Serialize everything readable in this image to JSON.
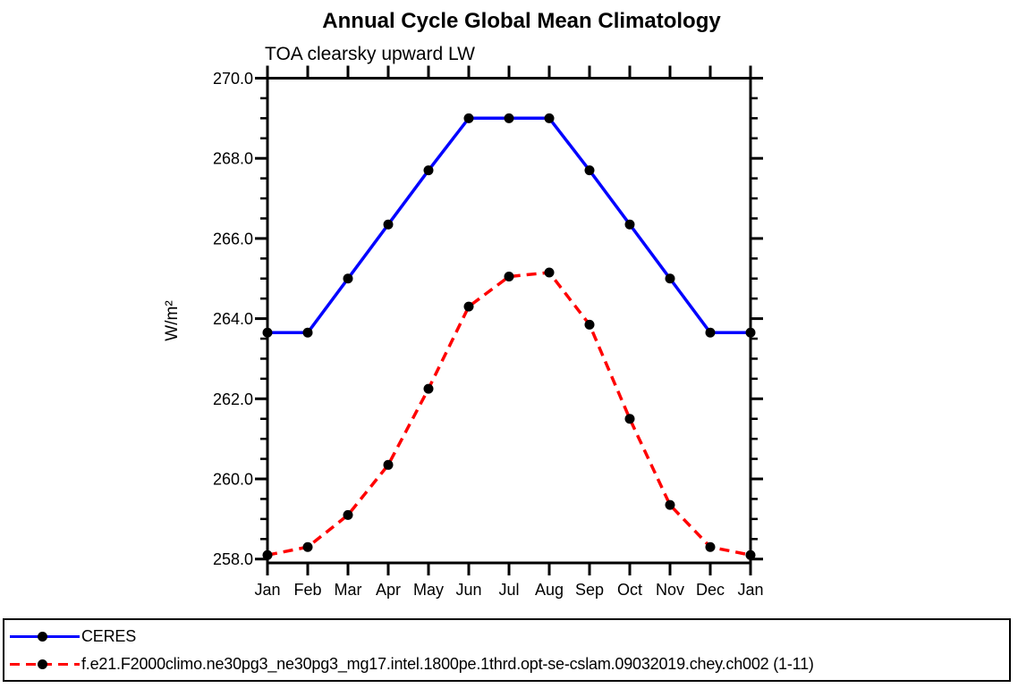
{
  "page": {
    "background": "#ffffff",
    "text_color": "#000000"
  },
  "chart_data": {
    "type": "line",
    "title": "Annual Cycle Global Mean Climatology",
    "subtitle": "TOA clearsky upward LW",
    "xlabel": "",
    "ylabel": "W/m²",
    "categories": [
      "Jan",
      "Feb",
      "Mar",
      "Apr",
      "May",
      "Jun",
      "Jul",
      "Aug",
      "Sep",
      "Oct",
      "Nov",
      "Dec",
      "Jan"
    ],
    "y_axis": {
      "min": 258.0,
      "max": 270.0,
      "major_step": 2.0,
      "minor_step": 0.5,
      "tick_labels": [
        "258.0",
        "260.0",
        "262.0",
        "264.0",
        "266.0",
        "268.0",
        "270.0"
      ]
    },
    "grid": "off",
    "legend_position": "bottom-outside-box",
    "axis_color": "#000000",
    "marker_color": "#000000",
    "series": [
      {
        "name": "CERES",
        "color": "#0000ff",
        "line_style": "solid",
        "marker": "filled-circle",
        "values": [
          263.65,
          263.65,
          265.0,
          266.35,
          267.7,
          269.0,
          269.0,
          269.0,
          267.7,
          266.35,
          265.0,
          263.65,
          263.65
        ]
      },
      {
        "name": "f.e21.F2000climo.ne30pg3_ne30pg3_mg17.intel.1800pe.1thrd.opt-se-cslam.09032019.chey.ch002 (1-11)",
        "color": "#ff0000",
        "line_style": "dashed",
        "marker": "filled-circle",
        "values": [
          258.1,
          258.3,
          259.1,
          260.35,
          262.25,
          264.3,
          265.05,
          265.15,
          263.85,
          261.5,
          259.35,
          258.3,
          258.1
        ]
      }
    ]
  }
}
